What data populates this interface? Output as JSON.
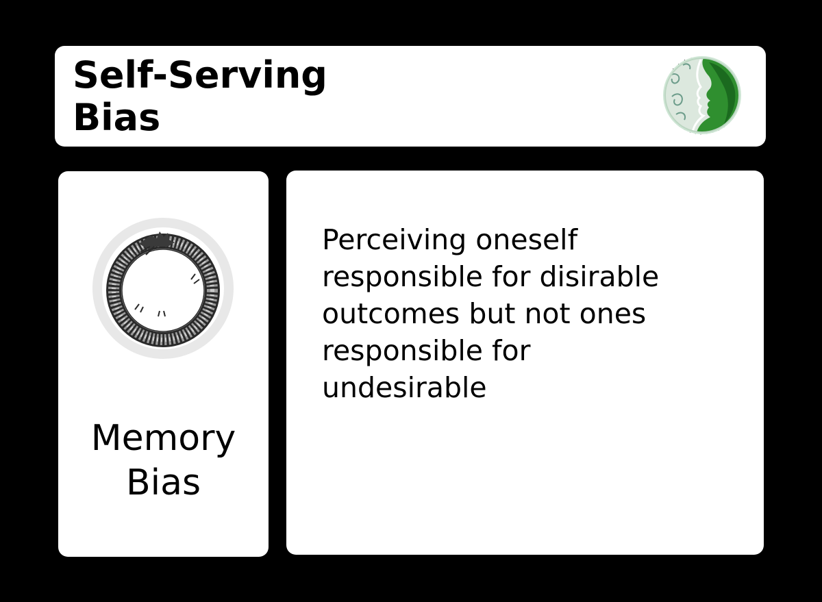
{
  "title": {
    "text": "Self-Serving\nBias",
    "badge_icon": "green-profile-face-seal-icon"
  },
  "category": {
    "icon": "ouroboros-icon",
    "text": "Memory\nBias"
  },
  "description": {
    "text": "Perceiving oneself\nresponsible for disirable\noutcomes but not ones\nresponsible for\nundesirable"
  },
  "colors": {
    "background": "#000000",
    "card": "#ffffff",
    "text": "#000000",
    "badge_green": "#2f8f2f",
    "ring_gray": "#e8e8e8"
  }
}
